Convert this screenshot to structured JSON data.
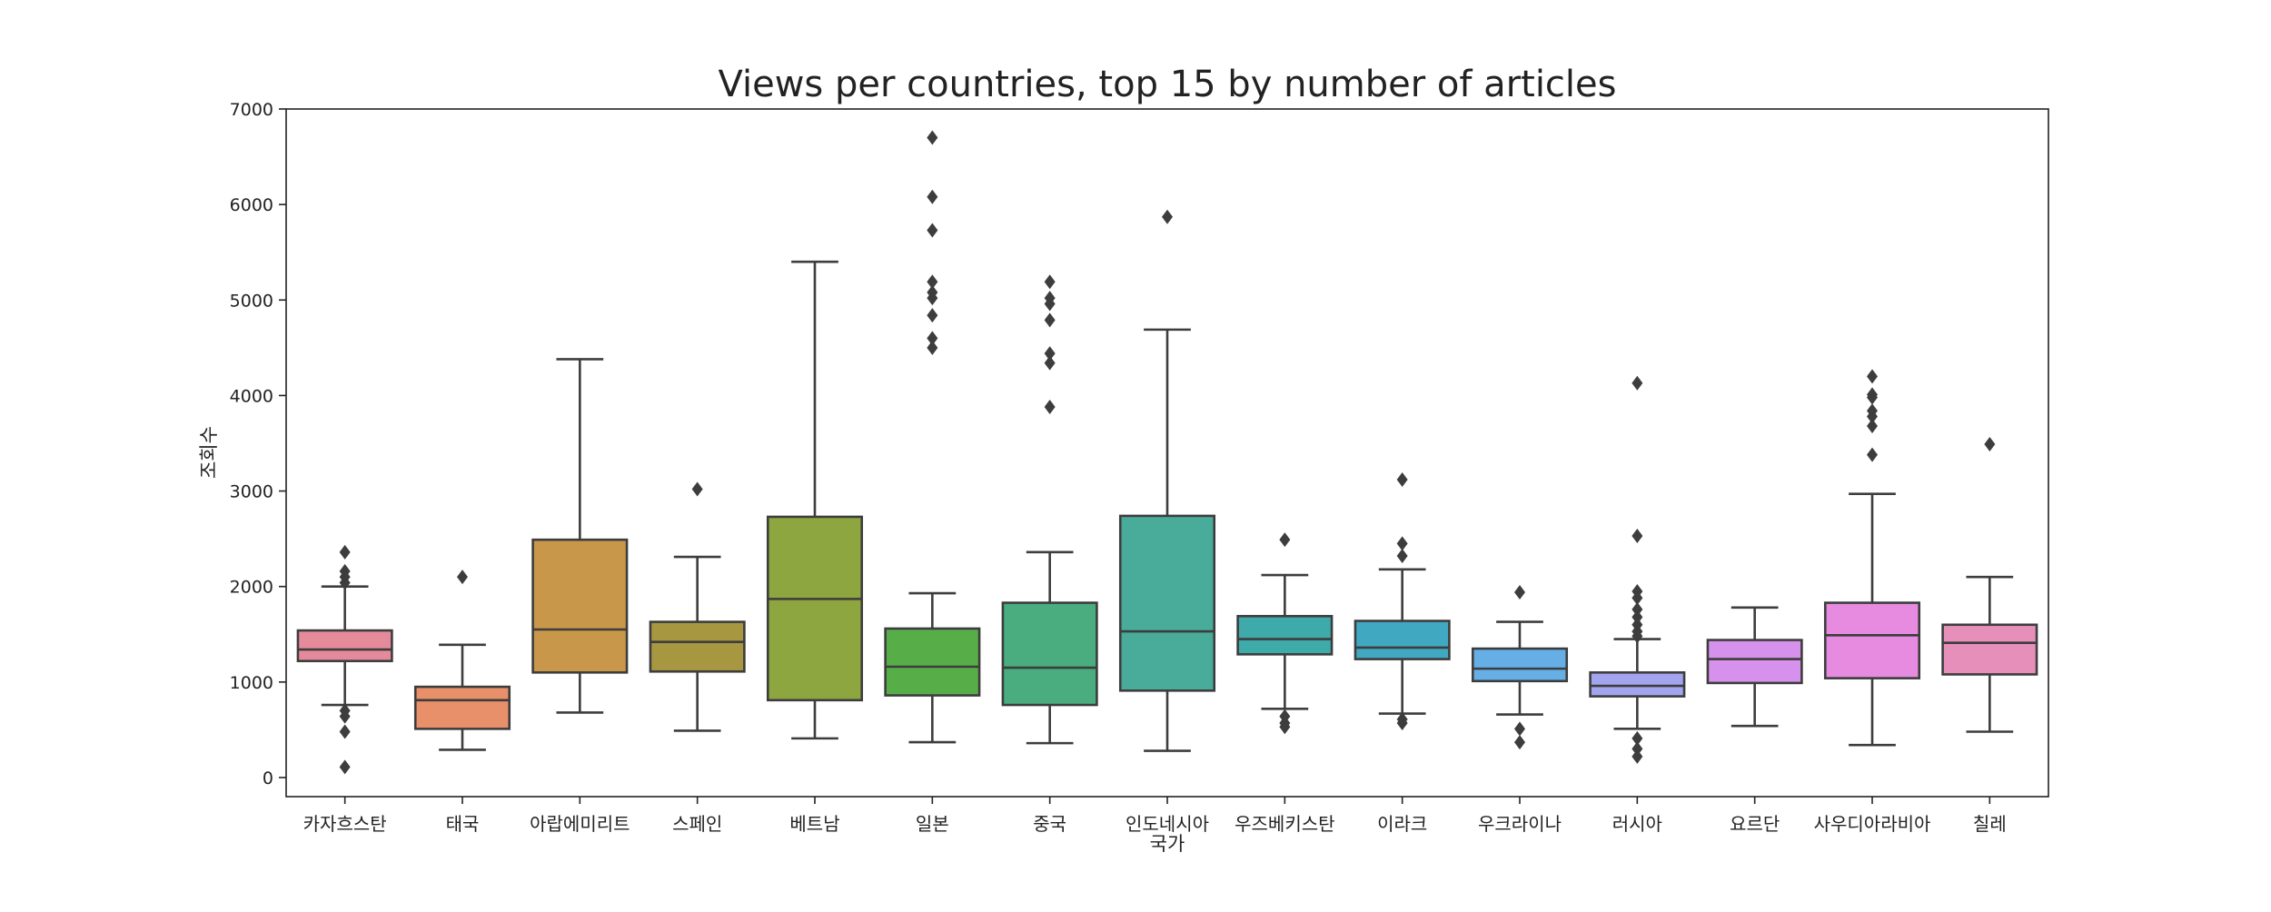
{
  "chart_data": {
    "type": "box",
    "title": "Views per countries, top 15 by number of articles",
    "xlabel": "국가",
    "ylabel": "조회수",
    "ylim": [
      -200,
      7000
    ],
    "yticks": [
      0,
      1000,
      2000,
      3000,
      4000,
      5000,
      6000,
      7000
    ],
    "grid": false,
    "categories": [
      "카자흐스탄",
      "태국",
      "아랍에미리트",
      "스페인",
      "베트남",
      "일본",
      "중국",
      "인도네시아",
      "우즈베키스탄",
      "이라크",
      "우크라이나",
      "러시아",
      "요르단",
      "사우디아라비아",
      "칠레"
    ],
    "colors": [
      "#e58a9a",
      "#e8906a",
      "#c8974a",
      "#a79741",
      "#8ea63f",
      "#57ae48",
      "#49ad80",
      "#49ac9b",
      "#3eaaaa",
      "#41a8c2",
      "#65aee6",
      "#a2a5ee",
      "#d591eb",
      "#e68be0",
      "#e68fbb"
    ],
    "boxes": [
      {
        "whislo": 760,
        "q1": 1220,
        "med": 1340,
        "q3": 1540,
        "whishi": 2000,
        "fliers": [
          110,
          480,
          640,
          700,
          2040,
          2100,
          2160,
          2360
        ]
      },
      {
        "whislo": 290,
        "q1": 510,
        "med": 810,
        "q3": 950,
        "whishi": 1390,
        "fliers": [
          2100
        ]
      },
      {
        "whislo": 680,
        "q1": 1100,
        "med": 1550,
        "q3": 2490,
        "whishi": 4380,
        "fliers": []
      },
      {
        "whislo": 490,
        "q1": 1110,
        "med": 1420,
        "q3": 1630,
        "whishi": 2310,
        "fliers": [
          3020
        ]
      },
      {
        "whislo": 410,
        "q1": 810,
        "med": 1870,
        "q3": 2730,
        "whishi": 5400,
        "fliers": []
      },
      {
        "whislo": 370,
        "q1": 860,
        "med": 1160,
        "q3": 1560,
        "whishi": 1930,
        "fliers": [
          4500,
          4600,
          4840,
          5020,
          5080,
          5190,
          5730,
          6080,
          6700
        ]
      },
      {
        "whislo": 360,
        "q1": 760,
        "med": 1150,
        "q3": 1830,
        "whishi": 2360,
        "fliers": [
          3880,
          4340,
          4440,
          4790,
          4960,
          5020,
          5190
        ]
      },
      {
        "whislo": 280,
        "q1": 910,
        "med": 1530,
        "q3": 2740,
        "whishi": 4690,
        "fliers": [
          5870
        ]
      },
      {
        "whislo": 720,
        "q1": 1290,
        "med": 1450,
        "q3": 1690,
        "whishi": 2120,
        "fliers": [
          530,
          570,
          640,
          2490
        ]
      },
      {
        "whislo": 670,
        "q1": 1240,
        "med": 1360,
        "q3": 1640,
        "whishi": 2180,
        "fliers": [
          570,
          610,
          2320,
          2450,
          3120
        ]
      },
      {
        "whislo": 660,
        "q1": 1010,
        "med": 1140,
        "q3": 1350,
        "whishi": 1630,
        "fliers": [
          370,
          510,
          1940
        ]
      },
      {
        "whislo": 510,
        "q1": 850,
        "med": 960,
        "q3": 1100,
        "whishi": 1450,
        "fliers": [
          220,
          300,
          410,
          1480,
          1530,
          1600,
          1680,
          1760,
          1880,
          1950,
          2530,
          4130
        ]
      },
      {
        "whislo": 540,
        "q1": 990,
        "med": 1240,
        "q3": 1440,
        "whishi": 1780,
        "fliers": []
      },
      {
        "whislo": 340,
        "q1": 1040,
        "med": 1490,
        "q3": 1830,
        "whishi": 2970,
        "fliers": [
          3380,
          3680,
          3780,
          3840,
          3980,
          4010,
          4200
        ]
      },
      {
        "whislo": 480,
        "q1": 1080,
        "med": 1410,
        "q3": 1600,
        "whishi": 2100,
        "fliers": [
          3490
        ]
      }
    ]
  }
}
